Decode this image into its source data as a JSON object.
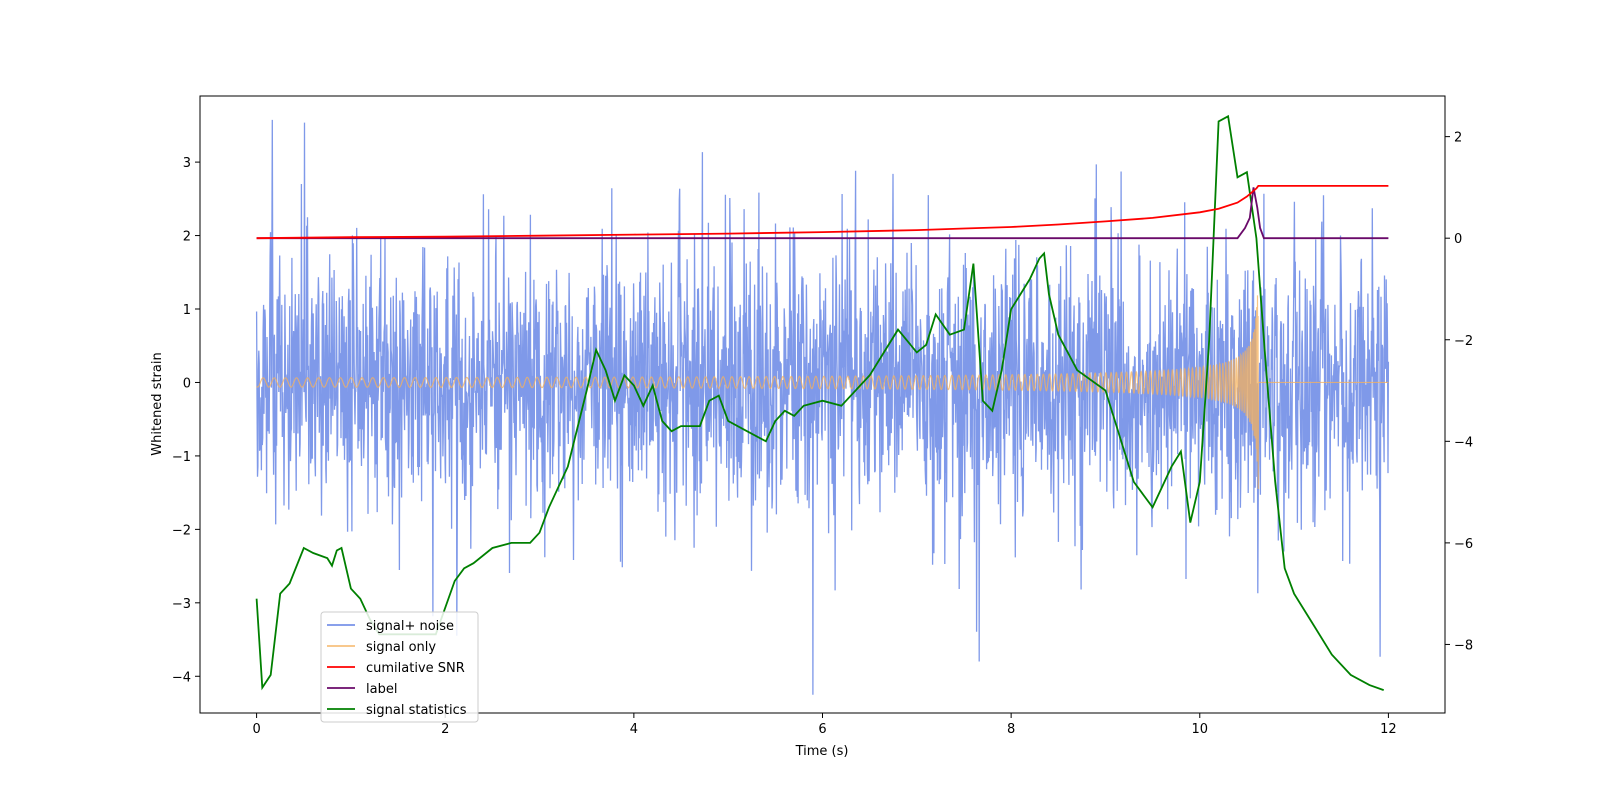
{
  "chart_data": {
    "type": "line",
    "title": "",
    "xlabel": "Time (s)",
    "ylabel": "Whitened strain",
    "ylabel_right": "",
    "xlim": [
      -0.6,
      12.6
    ],
    "ylim": [
      -4.5,
      3.9
    ],
    "ylim_right": [
      -9.35,
      2.8
    ],
    "x_ticks": [
      0,
      2,
      4,
      6,
      8,
      10,
      12
    ],
    "x_tick_labels": [
      "0",
      "2",
      "4",
      "6",
      "8",
      "10",
      "12"
    ],
    "y_ticks": [
      -4,
      -3,
      -2,
      -1,
      0,
      1,
      2,
      3
    ],
    "y_tick_labels": [
      "−4",
      "−3",
      "−2",
      "−1",
      "0",
      "1",
      "2",
      "3"
    ],
    "y_right_ticks": [
      -8,
      -6,
      -4,
      -2,
      0,
      2
    ],
    "y_right_tick_labels": [
      "−8",
      "−6",
      "−4",
      "−2",
      "0",
      "2"
    ],
    "grid": false,
    "legend_position": "lower-left",
    "noise": {
      "x_range": [
        0,
        12
      ],
      "std": 1.0,
      "min": -4.2,
      "max": 3.55
    },
    "chirp": {
      "merger_time": 10.62,
      "peak_amplitude": 1.45,
      "baseline_amplitude": 0.03
    },
    "series": [
      {
        "name": "signal+ noise",
        "axis": "left",
        "color": "#7893e8",
        "kind": "noise_plus_signal"
      },
      {
        "name": "signal only",
        "axis": "left",
        "color": "#f5b15c",
        "kind": "chirp"
      },
      {
        "name": "cumilative SNR",
        "axis": "right",
        "color": "#ff0000",
        "x": [
          0,
          1,
          2,
          3,
          4,
          5,
          6,
          7,
          7.5,
          8,
          8.5,
          9,
          9.5,
          10,
          10.2,
          10.4,
          10.5,
          10.55,
          10.6,
          10.62,
          11,
          12
        ],
        "y": [
          0.0,
          0.02,
          0.03,
          0.05,
          0.07,
          0.09,
          0.12,
          0.16,
          0.19,
          0.22,
          0.27,
          0.33,
          0.4,
          0.51,
          0.58,
          0.7,
          0.82,
          0.9,
          0.98,
          1.03,
          1.03,
          1.03
        ]
      },
      {
        "name": "label",
        "axis": "right",
        "color": "#6a0a6a",
        "x": [
          0,
          10.4,
          10.48,
          10.53,
          10.57,
          10.61,
          10.64,
          10.68,
          12
        ],
        "y": [
          0,
          0,
          0.2,
          0.4,
          1.0,
          0.6,
          0.2,
          0,
          0
        ]
      },
      {
        "name": "signal statistics",
        "axis": "right",
        "color": "#008000",
        "x": [
          0,
          0.06,
          0.15,
          0.25,
          0.35,
          0.5,
          0.6,
          0.75,
          0.8,
          0.85,
          0.9,
          1.0,
          1.1,
          1.2,
          1.3,
          1.5,
          1.7,
          1.9,
          2.1,
          2.2,
          2.3,
          2.5,
          2.7,
          2.9,
          3.0,
          3.1,
          3.3,
          3.5,
          3.6,
          3.7,
          3.8,
          3.9,
          4.0,
          4.1,
          4.2,
          4.3,
          4.4,
          4.5,
          4.7,
          4.8,
          4.9,
          5.0,
          5.2,
          5.4,
          5.5,
          5.6,
          5.7,
          5.8,
          6.0,
          6.2,
          6.4,
          6.5,
          6.6,
          6.8,
          7.0,
          7.1,
          7.2,
          7.35,
          7.5,
          7.6,
          7.7,
          7.8,
          7.9,
          8.0,
          8.1,
          8.2,
          8.3,
          8.35,
          8.4,
          8.5,
          8.7,
          9.0,
          9.3,
          9.5,
          9.7,
          9.8,
          9.9,
          10.0,
          10.1,
          10.2,
          10.3,
          10.4,
          10.5,
          10.6,
          10.7,
          10.8,
          10.9,
          11.0,
          11.2,
          11.4,
          11.6,
          11.8,
          11.95
        ],
        "y": [
          -7.1,
          -8.85,
          -8.6,
          -7.0,
          -6.8,
          -6.1,
          -6.2,
          -6.3,
          -6.45,
          -6.15,
          -6.1,
          -6.9,
          -7.1,
          -7.5,
          -7.8,
          -7.8,
          -7.8,
          -7.8,
          -6.75,
          -6.5,
          -6.4,
          -6.1,
          -6.0,
          -6.0,
          -5.8,
          -5.3,
          -4.5,
          -3.0,
          -2.2,
          -2.6,
          -3.2,
          -2.7,
          -2.9,
          -3.3,
          -2.9,
          -3.6,
          -3.8,
          -3.7,
          -3.7,
          -3.2,
          -3.1,
          -3.6,
          -3.8,
          -4.0,
          -3.6,
          -3.4,
          -3.5,
          -3.3,
          -3.2,
          -3.3,
          -2.9,
          -2.7,
          -2.4,
          -1.8,
          -2.25,
          -2.1,
          -1.5,
          -1.9,
          -1.8,
          -0.5,
          -3.2,
          -3.4,
          -2.6,
          -1.4,
          -1.1,
          -0.8,
          -0.4,
          -0.3,
          -1.1,
          -1.9,
          -2.6,
          -3.0,
          -4.8,
          -5.3,
          -4.5,
          -4.2,
          -5.6,
          -4.8,
          -2.0,
          2.3,
          2.4,
          1.2,
          1.3,
          0.0,
          -2.5,
          -4.8,
          -6.5,
          -7.0,
          -7.6,
          -8.2,
          -8.6,
          -8.8,
          -8.9
        ]
      }
    ]
  }
}
